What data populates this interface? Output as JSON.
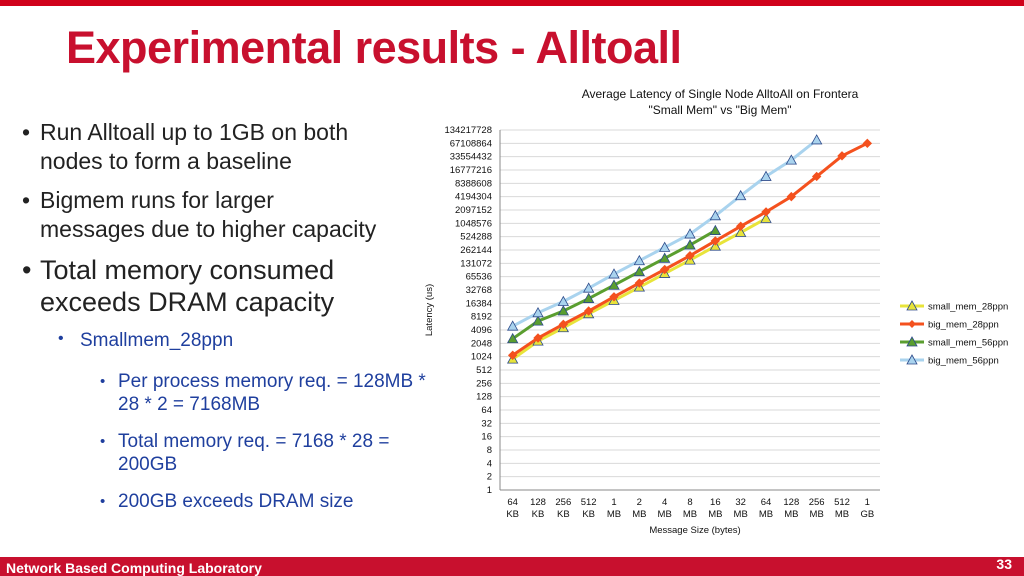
{
  "slide": {
    "title": "Experimental results - Alltoall",
    "bullets": [
      "Run Alltoall up to 1GB on both",
      "nodes to form a baseline",
      "Bigmem runs for larger",
      "messages due to higher capacity",
      "Total memory consumed",
      "exceeds DRAM capacity"
    ],
    "sub_bullet": "Smallmem_28ppn",
    "sub_sub_bullets": [
      [
        "Per process memory req. = 128MB *",
        "28 * 2 = 7168MB"
      ],
      [
        "Total memory req. = 7168 * 28 =",
        "200GB"
      ],
      [
        "200GB exceeds DRAM size"
      ]
    ],
    "footer": "Network Based Computing Laboratory",
    "page_number": "33"
  },
  "colors": {
    "accent": "#c8102e",
    "small_mem_28ppn": "#e8e43a",
    "big_mem_28ppn": "#f4511e",
    "small_mem_56ppn": "#5a9e2f",
    "big_mem_56ppn": "#a9d3ee"
  },
  "chart_data": {
    "type": "line",
    "title": "Average Latency of Single Node AlltoAll on Frontera",
    "subtitle": "\"Small Mem\" vs \"Big Mem\"",
    "xlabel": "Message Size (bytes)",
    "ylabel": "Latency (us)",
    "y_scale": "log2",
    "ylim": [
      1,
      134217728
    ],
    "y_ticks": [
      "1",
      "2",
      "4",
      "8",
      "16",
      "32",
      "64",
      "128",
      "256",
      "512",
      "1024",
      "2048",
      "4096",
      "8192",
      "16384",
      "32768",
      "65536",
      "131072",
      "262144",
      "524288",
      "1048576",
      "2097152",
      "4194304",
      "8388608",
      "16777216",
      "33554432",
      "67108864",
      "134217728"
    ],
    "categories": [
      "64 KB",
      "128 KB",
      "256 KB",
      "512 KB",
      "1 MB",
      "2 MB",
      "4 MB",
      "8 MB",
      "16 MB",
      "32 MB",
      "64 MB",
      "128 MB",
      "256 MB",
      "512 MB",
      "1 GB"
    ],
    "legend_position": "right",
    "grid": true,
    "series": [
      {
        "name": "small_mem_28ppn",
        "marker": "triangle",
        "values": [
          900,
          2300,
          4600,
          9500,
          19000,
          38000,
          77000,
          155000,
          320000,
          650000,
          1350000,
          null,
          null,
          null,
          null
        ]
      },
      {
        "name": "big_mem_28ppn",
        "marker": "diamond",
        "values": [
          1100,
          2700,
          5500,
          11000,
          23000,
          47000,
          95000,
          195000,
          420000,
          900000,
          1900000,
          4200000,
          12000000,
          35000000,
          67108864
        ]
      },
      {
        "name": "small_mem_56ppn",
        "marker": "triangle",
        "values": [
          2600,
          6500,
          11000,
          21000,
          42000,
          85000,
          170000,
          340000,
          720000,
          null,
          null,
          null,
          null,
          null,
          null
        ]
      },
      {
        "name": "big_mem_56ppn",
        "marker": "triangle",
        "values": [
          5000,
          10000,
          18000,
          36000,
          75000,
          150000,
          300000,
          600000,
          1550000,
          4400000,
          12000000,
          28000000,
          80000000,
          null,
          null
        ]
      }
    ]
  }
}
